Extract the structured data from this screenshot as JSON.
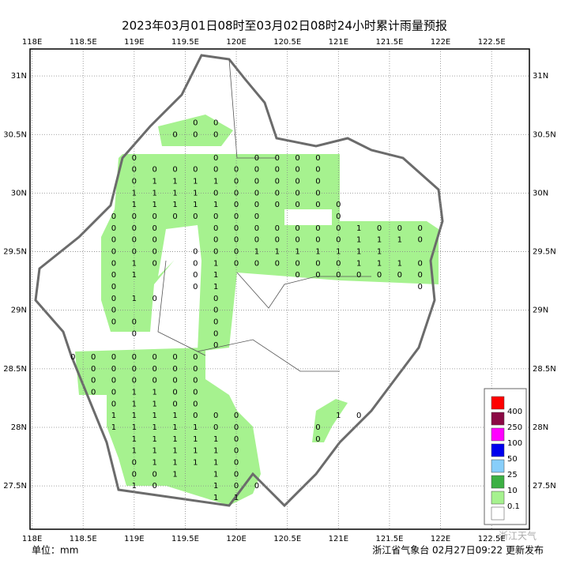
{
  "title": "2023年03月01日08时至03月02日08时24小时累计雨量预报",
  "unit_label": "单位：mm",
  "footer": "浙江省气象台 02月27日09:22 更新发布",
  "watermark": "浙江天气",
  "map": {
    "xlim": [
      117.98,
      122.87
    ],
    "ylim": [
      27.13,
      31.23
    ],
    "xticks": [
      {
        "value": 118,
        "label": "118E"
      },
      {
        "value": 118.5,
        "label": "118.5E"
      },
      {
        "value": 119,
        "label": "119E"
      },
      {
        "value": 119.5,
        "label": "119.5E"
      },
      {
        "value": 120,
        "label": "120E"
      },
      {
        "value": 120.5,
        "label": "120.5E"
      },
      {
        "value": 121,
        "label": "121E"
      },
      {
        "value": 121.5,
        "label": "121.5E"
      },
      {
        "value": 122,
        "label": "122E"
      },
      {
        "value": 122.5,
        "label": "122.5E"
      }
    ],
    "yticks": [
      {
        "value": 27.5,
        "label": "27.5N"
      },
      {
        "value": 28,
        "label": "28N"
      },
      {
        "value": 28.5,
        "label": "28.5N"
      },
      {
        "value": 29,
        "label": "29N"
      },
      {
        "value": 29.5,
        "label": "29.5N"
      },
      {
        "value": 30,
        "label": "30N"
      },
      {
        "value": 30.5,
        "label": "30.5N"
      },
      {
        "value": 31,
        "label": "31N"
      }
    ],
    "grid": true
  },
  "legend": {
    "colors": [
      "#ff0000",
      "#8b0a45",
      "#ff00ff",
      "#0000ee",
      "#87cefa",
      "#3cb043",
      "#a6f28f",
      "#ffffff"
    ],
    "labels": [
      "400",
      "250",
      "100",
      "50",
      "25",
      "10",
      "0.1"
    ]
  },
  "stations": [
    {
      "lat": 30.6,
      "lons": [
        119.6,
        119.8
      ],
      "values": [
        0,
        0
      ]
    },
    {
      "lat": 30.5,
      "lons": [
        119.4,
        119.6,
        119.8
      ],
      "values": [
        0,
        0,
        0
      ]
    },
    {
      "lat": 30.3,
      "lons": [
        119.0,
        119.8,
        120.2,
        120.4,
        120.6,
        120.8
      ],
      "values": [
        0,
        0,
        0,
        0,
        0,
        0
      ]
    },
    {
      "lat": 30.2,
      "lons": [
        119.0,
        119.2,
        119.4,
        119.6,
        119.8,
        120.0,
        120.2,
        120.4,
        120.6,
        120.8
      ],
      "values": [
        0,
        0,
        0,
        0,
        0,
        0,
        0,
        0,
        0,
        0
      ]
    },
    {
      "lat": 30.1,
      "lons": [
        119.0,
        119.2,
        119.4,
        119.6,
        119.8,
        120.0,
        120.2,
        120.4,
        120.6,
        120.8
      ],
      "values": [
        0,
        1,
        1,
        1,
        1,
        0,
        0,
        0,
        0,
        0
      ]
    },
    {
      "lat": 30.0,
      "lons": [
        119.0,
        119.2,
        119.4,
        119.6,
        119.8,
        120.0,
        120.2,
        120.4,
        120.6,
        120.8
      ],
      "values": [
        1,
        1,
        1,
        1,
        0,
        0,
        0,
        0,
        0,
        0
      ]
    },
    {
      "lat": 29.9,
      "lons": [
        119.0,
        119.2,
        119.4,
        119.6,
        119.8,
        120.0,
        120.2,
        120.4,
        120.6,
        120.8,
        121.0
      ],
      "values": [
        1,
        1,
        1,
        1,
        1,
        0,
        0,
        0,
        0,
        0,
        0
      ]
    },
    {
      "lat": 29.8,
      "lons": [
        118.8,
        119.0,
        119.2,
        119.4,
        119.6,
        119.8,
        120.0,
        120.2,
        121.0
      ],
      "values": [
        0,
        0,
        0,
        0,
        0,
        0,
        0,
        0,
        0
      ]
    },
    {
      "lat": 29.7,
      "lons": [
        118.8,
        119.0,
        119.2,
        119.8,
        120.0,
        120.2,
        120.4,
        120.6,
        120.8,
        121.0,
        121.2,
        121.4,
        121.6,
        121.8
      ],
      "values": [
        0,
        0,
        0,
        0,
        0,
        0,
        0,
        0,
        0,
        0,
        1,
        0,
        0,
        0
      ]
    },
    {
      "lat": 29.6,
      "lons": [
        118.8,
        119.0,
        119.2,
        119.8,
        120.0,
        120.2,
        120.4,
        120.6,
        120.8,
        121.0,
        121.2,
        121.4,
        121.6,
        121.8
      ],
      "values": [
        0,
        0,
        0,
        0,
        0,
        0,
        0,
        0,
        0,
        0,
        1,
        1,
        1,
        0
      ]
    },
    {
      "lat": 29.5,
      "lons": [
        118.8,
        119.0,
        119.2,
        119.6,
        119.8,
        120.0,
        120.2,
        120.4,
        120.6,
        120.8,
        121.0,
        121.2,
        121.4
      ],
      "values": [
        0,
        0,
        0,
        0,
        0,
        0,
        1,
        1,
        1,
        1,
        1,
        1,
        1
      ]
    },
    {
      "lat": 29.4,
      "lons": [
        118.8,
        119.0,
        119.2,
        119.6,
        119.8,
        120.0,
        120.2,
        120.4,
        120.6,
        120.8,
        121.0,
        121.2,
        121.4,
        121.6,
        121.8
      ],
      "values": [
        0,
        1,
        0,
        0,
        1,
        0,
        0,
        0,
        0,
        0,
        0,
        1,
        1,
        1,
        0
      ]
    },
    {
      "lat": 29.3,
      "lons": [
        118.8,
        119.0,
        119.6,
        119.8,
        120.6,
        120.8,
        121.0,
        121.2,
        121.4,
        121.6,
        121.8
      ],
      "values": [
        0,
        1,
        0,
        1,
        0,
        0,
        0,
        0,
        0,
        0,
        0
      ]
    },
    {
      "lat": 29.2,
      "lons": [
        118.8,
        119.6,
        119.8,
        121.8
      ],
      "values": [
        0,
        0,
        1,
        0
      ]
    },
    {
      "lat": 29.1,
      "lons": [
        118.8,
        119.0,
        119.2,
        119.8
      ],
      "values": [
        0,
        1,
        0,
        0
      ]
    },
    {
      "lat": 29.0,
      "lons": [
        118.8,
        119.8
      ],
      "values": [
        0,
        0
      ]
    },
    {
      "lat": 28.9,
      "lons": [
        118.8,
        119.0,
        119.8
      ],
      "values": [
        0,
        0,
        0
      ]
    },
    {
      "lat": 28.8,
      "lons": [
        119.0,
        119.8
      ],
      "values": [
        0,
        0
      ]
    },
    {
      "lat": 28.7,
      "lons": [
        119.8
      ],
      "values": [
        0
      ]
    },
    {
      "lat": 28.6,
      "lons": [
        118.4,
        118.6,
        118.8,
        119.0,
        119.2,
        119.4,
        119.6
      ],
      "values": [
        0,
        0,
        0,
        0,
        0,
        0,
        0
      ]
    },
    {
      "lat": 28.5,
      "lons": [
        118.6,
        118.8,
        119.0,
        119.2,
        119.4,
        119.6
      ],
      "values": [
        0,
        0,
        0,
        0,
        0,
        0
      ]
    },
    {
      "lat": 28.4,
      "lons": [
        118.6,
        118.8,
        119.0,
        119.2,
        119.4,
        119.6
      ],
      "values": [
        0,
        0,
        0,
        0,
        0,
        0
      ]
    },
    {
      "lat": 28.3,
      "lons": [
        118.6,
        118.8,
        119.0,
        119.2,
        119.4,
        119.6
      ],
      "values": [
        0,
        0,
        1,
        1,
        0,
        0
      ]
    },
    {
      "lat": 28.2,
      "lons": [
        118.8,
        119.0,
        119.2,
        119.4,
        119.6
      ],
      "values": [
        0,
        1,
        1,
        0,
        0
      ]
    },
    {
      "lat": 28.1,
      "lons": [
        118.8,
        119.0,
        119.2,
        119.4,
        119.6,
        119.8,
        120.0,
        121.0,
        121.2
      ],
      "values": [
        1,
        1,
        1,
        1,
        0,
        0,
        0,
        1,
        0
      ]
    },
    {
      "lat": 28.0,
      "lons": [
        118.8,
        119.0,
        119.2,
        119.4,
        119.6,
        119.8,
        120.0,
        120.8
      ],
      "values": [
        1,
        1,
        1,
        1,
        1,
        0,
        0,
        0
      ]
    },
    {
      "lat": 27.9,
      "lons": [
        119.0,
        119.2,
        119.4,
        119.6,
        119.8,
        120.0,
        120.8
      ],
      "values": [
        1,
        1,
        1,
        1,
        1,
        0,
        0
      ]
    },
    {
      "lat": 27.8,
      "lons": [
        119.0,
        119.2,
        119.4,
        119.6,
        119.8,
        120.0
      ],
      "values": [
        1,
        1,
        1,
        1,
        1,
        0
      ]
    },
    {
      "lat": 27.7,
      "lons": [
        119.0,
        119.2,
        119.4,
        119.6,
        119.8,
        120.0
      ],
      "values": [
        0,
        1,
        1,
        1,
        1,
        0
      ]
    },
    {
      "lat": 27.6,
      "lons": [
        119.0,
        119.2,
        119.4,
        119.8,
        120.0
      ],
      "values": [
        0,
        0,
        1,
        1,
        0
      ]
    },
    {
      "lat": 27.5,
      "lons": [
        119.0,
        119.2,
        119.8,
        120.0,
        120.2
      ],
      "values": [
        1,
        0,
        1,
        0,
        0
      ]
    },
    {
      "lat": 27.4,
      "lons": [
        119.8,
        120.0
      ],
      "values": [
        1,
        1
      ]
    }
  ]
}
